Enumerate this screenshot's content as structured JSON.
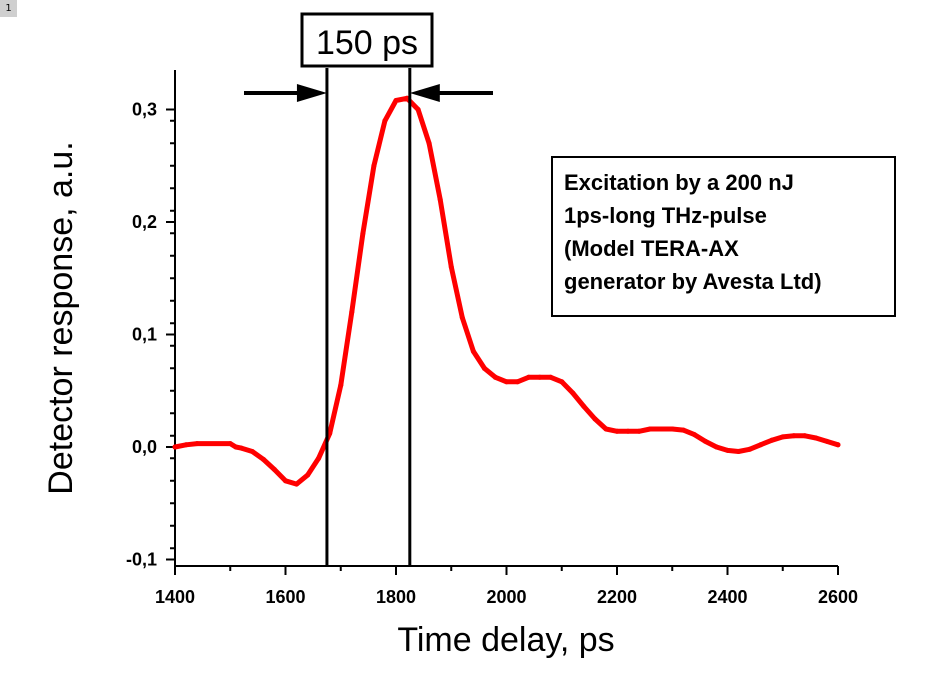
{
  "page_badge": "1",
  "chart_data": {
    "type": "line",
    "title": "",
    "xlabel": "Time delay, ps",
    "ylabel": "Detector response, a.u.",
    "xlim": [
      1400,
      2600
    ],
    "ylim": [
      -0.1,
      0.31
    ],
    "xticks": [
      1400,
      1600,
      1800,
      2000,
      2200,
      2400,
      2600
    ],
    "xtick_labels": [
      "1400",
      "1600",
      "1800",
      "2000",
      "2200",
      "2400",
      "2600"
    ],
    "yticks": [
      -0.1,
      0.0,
      0.1,
      0.2,
      0.3
    ],
    "ytick_labels": [
      "-0,1",
      "0,0",
      "0,1",
      "0,2",
      "0,3"
    ],
    "grid": false,
    "series": [
      {
        "color": "#ff0000",
        "x": [
          1400,
          1420,
          1440,
          1500,
          1510,
          1520,
          1540,
          1560,
          1580,
          1600,
          1620,
          1640,
          1660,
          1680,
          1700,
          1720,
          1740,
          1760,
          1780,
          1800,
          1820,
          1840,
          1860,
          1880,
          1900,
          1920,
          1940,
          1960,
          1980,
          2000,
          2020,
          2040,
          2060,
          2080,
          2100,
          2120,
          2140,
          2160,
          2180,
          2200,
          2220,
          2240,
          2260,
          2280,
          2300,
          2320,
          2340,
          2360,
          2380,
          2400,
          2420,
          2440,
          2460,
          2480,
          2500,
          2520,
          2540,
          2560,
          2580,
          2600
        ],
        "y": [
          0.0,
          0.002,
          0.003,
          0.003,
          0.0,
          -0.001,
          -0.004,
          -0.011,
          -0.02,
          -0.03,
          -0.033,
          -0.025,
          -0.01,
          0.012,
          0.055,
          0.12,
          0.19,
          0.25,
          0.29,
          0.308,
          0.31,
          0.3,
          0.27,
          0.22,
          0.16,
          0.115,
          0.085,
          0.07,
          0.062,
          0.058,
          0.058,
          0.062,
          0.062,
          0.062,
          0.058,
          0.048,
          0.036,
          0.025,
          0.016,
          0.014,
          0.014,
          0.014,
          0.016,
          0.016,
          0.016,
          0.015,
          0.011,
          0.005,
          0.0,
          -0.003,
          -0.004,
          -0.002,
          0.002,
          0.006,
          0.009,
          0.01,
          0.01,
          0.008,
          0.005,
          0.002
        ]
      }
    ],
    "markers": {
      "lines_x": [
        1675,
        1825
      ],
      "width_label": "150 ps"
    },
    "annotation": {
      "lines": [
        "Excitation by a 200 nJ",
        "1ps-long THz-pulse",
        "(Model TERA-AX",
        "generator by Avesta Ltd)"
      ]
    }
  }
}
